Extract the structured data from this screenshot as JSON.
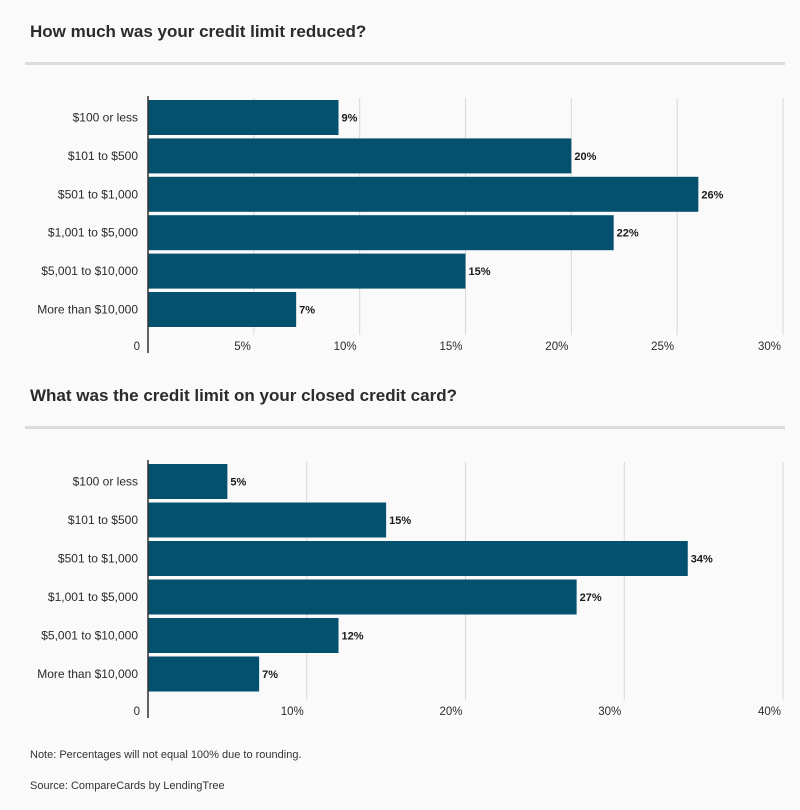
{
  "colors": {
    "bar": "#03506f",
    "grid": "#d8d8d8",
    "axis": "#333333"
  },
  "chart_data": [
    {
      "type": "bar",
      "orientation": "horizontal",
      "title": "How much was your credit limit reduced?",
      "categories": [
        "$100 or less",
        "$101 to $500",
        "$501 to $1,000",
        "$1,001 to $5,000",
        "$5,001 to $10,000",
        "More than $10,000"
      ],
      "values": [
        9,
        20,
        26,
        22,
        15,
        7
      ],
      "value_labels": [
        "9%",
        "20%",
        "26%",
        "22%",
        "15%",
        "7%"
      ],
      "xlim": [
        0,
        30
      ],
      "x_ticks": [
        0,
        5,
        10,
        15,
        20,
        25,
        30
      ],
      "x_tick_labels": [
        "0",
        "5%",
        "10%",
        "15%",
        "20%",
        "25%",
        "30%"
      ],
      "grid": true
    },
    {
      "type": "bar",
      "orientation": "horizontal",
      "title": "What was the credit limit on your closed credit card?",
      "categories": [
        "$100 or less",
        "$101 to $500",
        "$501 to $1,000",
        "$1,001 to $5,000",
        "$5,001 to $10,000",
        "More than $10,000"
      ],
      "values": [
        5,
        15,
        34,
        27,
        12,
        7
      ],
      "value_labels": [
        "5%",
        "15%",
        "34%",
        "27%",
        "12%",
        "7%"
      ],
      "xlim": [
        0,
        40
      ],
      "x_ticks": [
        0,
        10,
        20,
        30,
        40
      ],
      "x_tick_labels": [
        "0",
        "10%",
        "20%",
        "30%",
        "40%"
      ],
      "grid": true
    }
  ],
  "footer": {
    "note": "Note: Percentages will not equal 100% due to rounding.",
    "source": "Source: CompareCards by LendingTree"
  }
}
